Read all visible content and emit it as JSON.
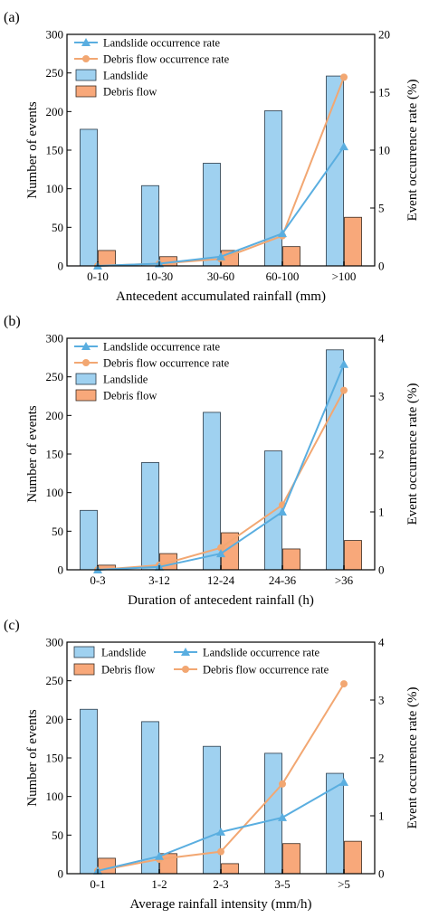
{
  "colors": {
    "landslide_bar": "#9fd1f0",
    "landslide_bar_edge": "#2a3a48",
    "debris_bar": "#f8a87a",
    "debris_bar_edge": "#3a2a20",
    "landslide_line": "#5aaee0",
    "debris_line": "#f2a772"
  },
  "chart_data": [
    {
      "type": "bar",
      "panel_label": "(a)",
      "categories": [
        "0-10",
        "10-30",
        "30-60",
        "60-100",
        ">100"
      ],
      "xlabel": "Antecedent accumulated rainfall (mm)",
      "ylabel": "Number of events",
      "y2label": "Event occurrence rate (%)",
      "ylim": [
        0,
        300
      ],
      "yticks": [
        0,
        50,
        100,
        150,
        200,
        250,
        300
      ],
      "y2lim": [
        0,
        20
      ],
      "y2ticks": [
        0,
        5,
        10,
        15,
        20
      ],
      "legend_position": "top-left",
      "legend_order": [
        "line_landslide",
        "line_debris",
        "bar_landslide",
        "bar_debris"
      ],
      "series": [
        {
          "name": "Landslide",
          "kind": "bar",
          "axis": "left",
          "values": [
            177,
            104,
            133,
            201,
            246
          ]
        },
        {
          "name": "Debris flow",
          "kind": "bar",
          "axis": "left",
          "values": [
            20,
            12,
            20,
            25,
            63
          ]
        },
        {
          "name": "Landslide occurrence rate",
          "kind": "line",
          "marker": "triangle",
          "axis": "right",
          "values": [
            0.0,
            0.2,
            0.8,
            2.8,
            10.3
          ]
        },
        {
          "name": "Debris flow occurrence rate",
          "kind": "line",
          "marker": "circle",
          "axis": "right",
          "values": [
            0.0,
            0.2,
            0.6,
            2.6,
            16.3
          ]
        }
      ]
    },
    {
      "type": "bar",
      "panel_label": "(b)",
      "categories": [
        "0-3",
        "3-12",
        "12-24",
        "24-36",
        ">36"
      ],
      "xlabel": "Duration of antecedent rainfall (h)",
      "ylabel": "Number of events",
      "y2label": "Event occurrence rate (%)",
      "ylim": [
        0,
        300
      ],
      "yticks": [
        0,
        50,
        100,
        150,
        200,
        250,
        300
      ],
      "y2lim": [
        0,
        4
      ],
      "y2ticks": [
        0,
        1,
        2,
        3,
        4
      ],
      "legend_position": "top-left",
      "legend_order": [
        "line_landslide",
        "line_debris",
        "bar_landslide",
        "bar_debris"
      ],
      "series": [
        {
          "name": "Landslide",
          "kind": "bar",
          "axis": "left",
          "values": [
            77,
            139,
            204,
            154,
            285
          ]
        },
        {
          "name": "Debris flow",
          "kind": "bar",
          "axis": "left",
          "values": [
            6,
            21,
            48,
            27,
            38
          ]
        },
        {
          "name": "Landslide occurrence rate",
          "kind": "line",
          "marker": "triangle",
          "axis": "right",
          "values": [
            0.0,
            0.05,
            0.28,
            1.0,
            3.55
          ]
        },
        {
          "name": "Debris flow occurrence rate",
          "kind": "line",
          "marker": "circle",
          "axis": "right",
          "values": [
            0.0,
            0.08,
            0.38,
            1.12,
            3.1
          ]
        }
      ]
    },
    {
      "type": "bar",
      "panel_label": "(c)",
      "categories": [
        "0-1",
        "1-2",
        "2-3",
        "3-5",
        ">5"
      ],
      "xlabel": "Average rainfall intensity (mm/h)",
      "ylabel": "Number of events",
      "y2label": "Event occurrence rate (%)",
      "ylim": [
        0,
        300
      ],
      "yticks": [
        0,
        50,
        100,
        150,
        200,
        250,
        300
      ],
      "y2lim": [
        0,
        4
      ],
      "y2ticks": [
        0,
        1,
        2,
        3,
        4
      ],
      "legend_position": "top (two columns)",
      "legend_order": [
        "bar_landslide",
        "line_landslide",
        "bar_debris",
        "line_debris"
      ],
      "series": [
        {
          "name": "Landslide",
          "kind": "bar",
          "axis": "left",
          "values": [
            213,
            197,
            165,
            156,
            130
          ]
        },
        {
          "name": "Debris flow",
          "kind": "bar",
          "axis": "left",
          "values": [
            20,
            26,
            13,
            39,
            42
          ]
        },
        {
          "name": "Landslide occurrence rate",
          "kind": "line",
          "marker": "triangle",
          "axis": "right",
          "values": [
            0.05,
            0.3,
            0.72,
            0.97,
            1.58
          ]
        },
        {
          "name": "Debris flow occurrence rate",
          "kind": "line",
          "marker": "circle",
          "axis": "right",
          "values": [
            0.05,
            0.25,
            0.38,
            1.55,
            3.28
          ]
        }
      ]
    }
  ]
}
